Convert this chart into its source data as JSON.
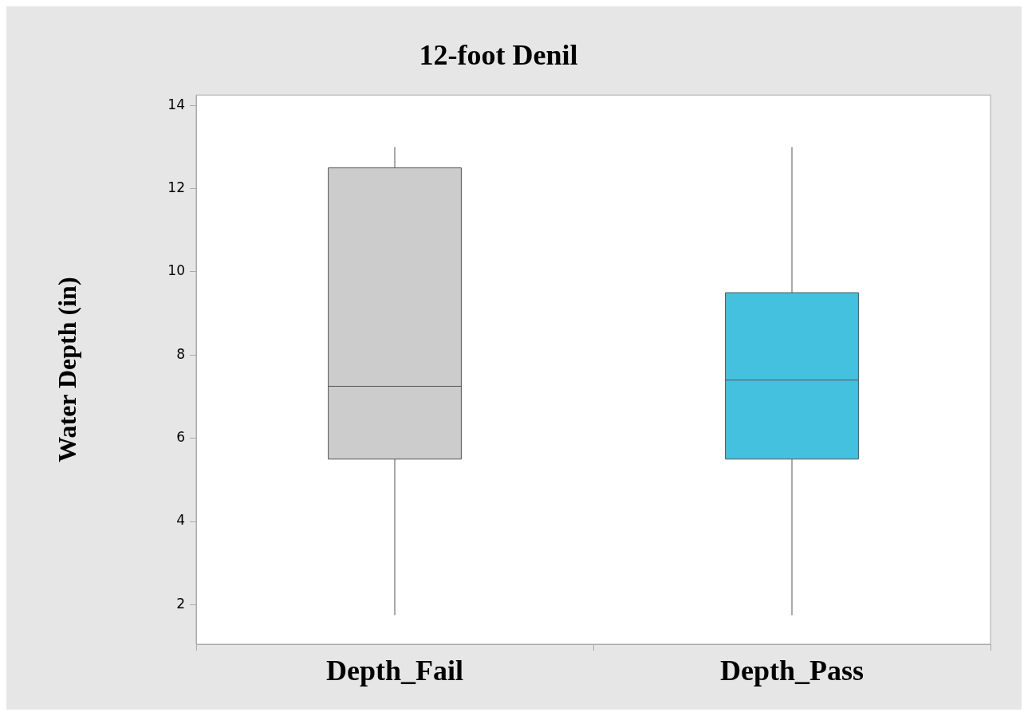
{
  "chart_data": {
    "type": "box",
    "title": "12-foot Denil",
    "ylabel": "Water Depth (in)",
    "categories": [
      "Depth_Fail",
      "Depth_Pass"
    ],
    "boxes": [
      {
        "low": 1.75,
        "q1": 5.5,
        "median": 7.25,
        "q3": 12.5,
        "high": 13
      },
      {
        "low": 1.75,
        "q1": 5.5,
        "median": 7.4,
        "q3": 9.5,
        "high": 13
      }
    ],
    "colors": [
      "#cccccc",
      "#45c1e0"
    ],
    "ylim": [
      1.05,
      14.25
    ],
    "yticks": [
      2,
      4,
      6,
      8,
      10,
      12,
      14
    ]
  }
}
